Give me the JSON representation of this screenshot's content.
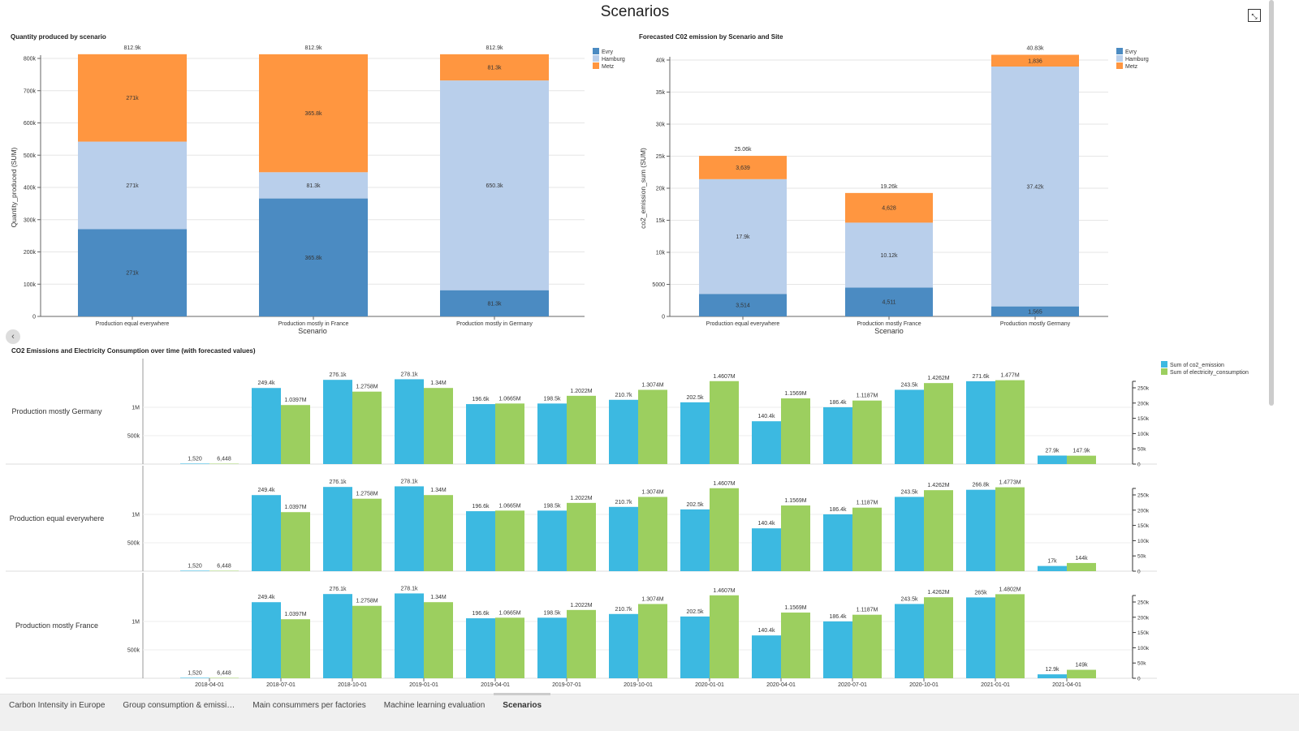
{
  "page": {
    "title": "Scenarios",
    "collapse_icon": "collapse-icon",
    "back_icon": "chevron-left-icon"
  },
  "tabs": [
    {
      "label": "Carbon Intensity in Europe",
      "active": false
    },
    {
      "label": "Group consumption & emissi…",
      "active": false
    },
    {
      "label": "Main consummers per factories",
      "active": false
    },
    {
      "label": "Machine learning evaluation",
      "active": false
    },
    {
      "label": "Scenarios",
      "active": true
    }
  ],
  "colors": {
    "Evry": "#4b8bc2",
    "Hamburg": "#b9cfeb",
    "Metz": "#ff9640",
    "co2": "#3cb9e1",
    "elec": "#9ccf5f"
  },
  "chart_data": [
    {
      "type": "bar",
      "stacked": true,
      "title": "Quantity produced by scenario",
      "xlabel": "Scenario",
      "ylabel": "Quantity_produced (SUM)",
      "ylim": [
        0,
        800000
      ],
      "yticks": [
        "0",
        "100k",
        "200k",
        "300k",
        "400k",
        "500k",
        "600k",
        "700k",
        "800k"
      ],
      "legend_position": "top-right",
      "categories": [
        "Production equal everywhere",
        "Production mostly in France",
        "Production mostly in Germany"
      ],
      "totals": [
        812900,
        812900,
        812900
      ],
      "total_labels": [
        "812.9k",
        "812.9k",
        "812.9k"
      ],
      "series": [
        {
          "name": "Evry",
          "values": [
            271000,
            365800,
            81300
          ],
          "labels": [
            "271k",
            "365.8k",
            "81.3k"
          ]
        },
        {
          "name": "Hamburg",
          "values": [
            271000,
            81300,
            650300
          ],
          "labels": [
            "271k",
            "81.3k",
            "650.3k"
          ]
        },
        {
          "name": "Metz",
          "values": [
            271000,
            365800,
            81300
          ],
          "labels": [
            "271k",
            "365.8k",
            "81.3k"
          ]
        }
      ]
    },
    {
      "type": "bar",
      "stacked": true,
      "title": "Forecasted C02 emission by Scenario and Site",
      "xlabel": "Scenario",
      "ylabel": "co2_emission_sum (SUM)",
      "ylim": [
        0,
        40000
      ],
      "yticks": [
        "0",
        "5000",
        "10k",
        "15k",
        "20k",
        "25k",
        "30k",
        "35k",
        "40k"
      ],
      "legend_position": "top-right",
      "categories": [
        "Production equal everywhere",
        "Production mostly France",
        "Production mostly Germany"
      ],
      "totals": [
        25060,
        19260,
        40830
      ],
      "total_labels": [
        "25.06k",
        "19.26k",
        "40.83k"
      ],
      "series": [
        {
          "name": "Evry",
          "values": [
            3514,
            4511,
            1565
          ],
          "labels": [
            "3,514",
            "4,511",
            "1,565"
          ]
        },
        {
          "name": "Hamburg",
          "values": [
            17900,
            10120,
            37420
          ],
          "labels": [
            "17.9k",
            "10.12k",
            "37.42k"
          ]
        },
        {
          "name": "Metz",
          "values": [
            3639,
            4628,
            1836
          ],
          "labels": [
            "3,639",
            "4,628",
            "1,836"
          ]
        }
      ]
    },
    {
      "type": "bar",
      "title": "CO2 Emissions and Electricity Consumption over time (with forecasted values)",
      "legend_position": "top-right",
      "legend": [
        "Sum of co2_emission",
        "Sum of electricity_consumption"
      ],
      "x": [
        "2018-04-01",
        "2018-07-01",
        "2018-10-01",
        "2019-01-01",
        "2019-04-01",
        "2019-07-01",
        "2019-10-01",
        "2020-01-01",
        "2020-04-01",
        "2020-07-01",
        "2020-10-01",
        "2021-01-01",
        "2021-04-01"
      ],
      "left_axis_ticks": [
        "500k",
        "1M"
      ],
      "right_axis_ticks": [
        "0",
        "50k",
        "100k",
        "150k",
        "200k",
        "250k"
      ],
      "rows": [
        {
          "name": "Production mostly Germany",
          "co2": [
            1520,
            249400,
            276100,
            278100,
            196600,
            198500,
            210700,
            202500,
            140400,
            186400,
            243500,
            271600,
            27900
          ],
          "co2_labels": [
            "1,520",
            "249.4k",
            "276.1k",
            "278.1k",
            "196.6k",
            "198.5k",
            "210.7k",
            "202.5k",
            "140.4k",
            "186.4k",
            "243.5k",
            "271.6k",
            "27.9k"
          ],
          "elec": [
            6448,
            1039700,
            1275800,
            1340000,
            1066500,
            1202200,
            1307400,
            1460700,
            1156900,
            1118700,
            1426200,
            1477000,
            147900
          ],
          "elec_labels": [
            "6,448",
            "1.0397M",
            "1.2758M",
            "1.34M",
            "1.0665M",
            "1.2022M",
            "1.3074M",
            "1.4607M",
            "1.1569M",
            "1.1187M",
            "1.4262M",
            "1.477M",
            "147.9k"
          ]
        },
        {
          "name": "Production equal everywhere",
          "co2": [
            1520,
            249400,
            276100,
            278100,
            196600,
            198500,
            210700,
            202500,
            140400,
            186400,
            243500,
            266800,
            17000
          ],
          "co2_labels": [
            "1,520",
            "249.4k",
            "276.1k",
            "278.1k",
            "196.6k",
            "198.5k",
            "210.7k",
            "202.5k",
            "140.4k",
            "186.4k",
            "243.5k",
            "266.8k",
            "17k"
          ],
          "elec": [
            6448,
            1039700,
            1275800,
            1340000,
            1066500,
            1202200,
            1307400,
            1460700,
            1156900,
            1118700,
            1426200,
            1477300,
            144000
          ],
          "elec_labels": [
            "6,448",
            "1.0397M",
            "1.2758M",
            "1.34M",
            "1.0665M",
            "1.2022M",
            "1.3074M",
            "1.4607M",
            "1.1569M",
            "1.1187M",
            "1.4262M",
            "1.4773M",
            "144k"
          ]
        },
        {
          "name": "Production mostly France",
          "co2": [
            1520,
            249400,
            276100,
            278100,
            196600,
            198500,
            210700,
            202500,
            140400,
            186400,
            243500,
            265000,
            12900
          ],
          "co2_labels": [
            "1,520",
            "249.4k",
            "276.1k",
            "278.1k",
            "196.6k",
            "198.5k",
            "210.7k",
            "202.5k",
            "140.4k",
            "186.4k",
            "243.5k",
            "265k",
            "12.9k"
          ],
          "elec": [
            6448,
            1039700,
            1275800,
            1340000,
            1066500,
            1202200,
            1307400,
            1460700,
            1156900,
            1118700,
            1426200,
            1480200,
            149000
          ],
          "elec_labels": [
            "6,448",
            "1.0397M",
            "1.2758M",
            "1.34M",
            "1.0665M",
            "1.2022M",
            "1.3074M",
            "1.4607M",
            "1.1569M",
            "1.1187M",
            "1.4262M",
            "1.4802M",
            "149k"
          ]
        }
      ]
    }
  ]
}
